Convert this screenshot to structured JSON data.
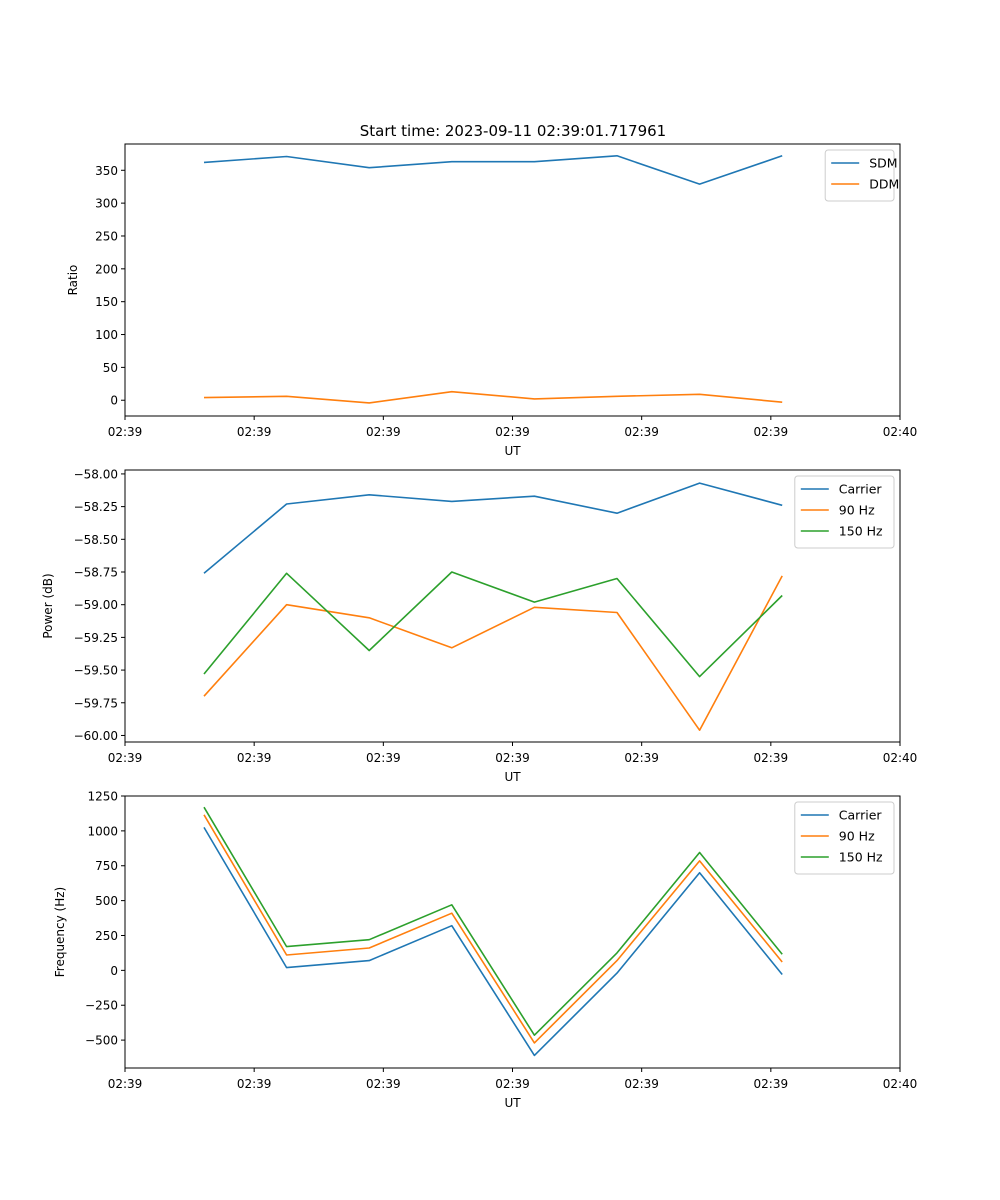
{
  "figure_title": "Start time: 2023-09-11 02:39:01.717961",
  "colors": {
    "c0": "#1f77b4",
    "c1": "#ff7f0e",
    "c2": "#2ca02c"
  },
  "chart_data": [
    {
      "type": "line",
      "title": "Start time: 2023-09-11 02:39:01.717961",
      "xlabel": "UT",
      "ylabel": "Ratio",
      "xlim": [
        -0.5,
        5.5
      ],
      "x": [
        0,
        1,
        2,
        3,
        4,
        5,
        6,
        7
      ],
      "xticks": [
        -0.5,
        0.5,
        1.5,
        2.5,
        3.5,
        4.5,
        5.5
      ],
      "xtick_labels": [
        "02:39",
        "02:39",
        "02:39",
        "02:39",
        "02:39",
        "02:39",
        "02:40"
      ],
      "ylim": [
        -24,
        390
      ],
      "yticks": [
        0,
        50,
        100,
        150,
        200,
        250,
        300,
        350
      ],
      "ytick_labels": [
        "0",
        "50",
        "100",
        "150",
        "200",
        "250",
        "300",
        "350"
      ],
      "legend_position": "upper-right",
      "series": [
        {
          "name": "SDM",
          "color": "#1f77b4",
          "values": [
            362,
            371,
            354,
            363,
            363,
            372,
            329,
            372
          ]
        },
        {
          "name": "DDM",
          "color": "#ff7f0e",
          "values": [
            4,
            6,
            -4,
            13,
            2,
            6,
            9,
            -3
          ]
        }
      ]
    },
    {
      "type": "line",
      "title": "",
      "xlabel": "UT",
      "ylabel": "Power (dB)",
      "xlim": [
        -0.5,
        5.5
      ],
      "x": [
        0,
        1,
        2,
        3,
        4,
        5,
        6,
        7
      ],
      "xticks": [
        -0.5,
        0.5,
        1.5,
        2.5,
        3.5,
        4.5,
        5.5
      ],
      "xtick_labels": [
        "02:39",
        "02:39",
        "02:39",
        "02:39",
        "02:39",
        "02:39",
        "02:40"
      ],
      "ylim": [
        -60.05,
        -57.97
      ],
      "yticks": [
        -58.0,
        -58.25,
        -58.5,
        -58.75,
        -59.0,
        -59.25,
        -59.5,
        -59.75,
        -60.0
      ],
      "ytick_labels": [
        "−58.00",
        "−58.25",
        "−58.50",
        "−58.75",
        "−59.00",
        "−59.25",
        "−59.50",
        "−59.75",
        "−60.00"
      ],
      "legend_position": "upper-right",
      "series": [
        {
          "name": "Carrier",
          "color": "#1f77b4",
          "values": [
            -58.76,
            -58.23,
            -58.16,
            -58.21,
            -58.17,
            -58.3,
            -58.07,
            -58.24
          ]
        },
        {
          "name": "90 Hz",
          "color": "#ff7f0e",
          "values": [
            -59.7,
            -59.0,
            -59.1,
            -59.33,
            -59.02,
            -59.06,
            -59.96,
            -58.78
          ]
        },
        {
          "name": "150 Hz",
          "color": "#2ca02c",
          "values": [
            -59.53,
            -58.76,
            -59.35,
            -58.75,
            -58.98,
            -58.8,
            -59.55,
            -58.93
          ]
        }
      ]
    },
    {
      "type": "line",
      "title": "",
      "xlabel": "UT",
      "ylabel": "Frequency (Hz)",
      "xlim": [
        -0.5,
        5.5
      ],
      "x": [
        0,
        1,
        2,
        3,
        4,
        5,
        6,
        7
      ],
      "xticks": [
        -0.5,
        0.5,
        1.5,
        2.5,
        3.5,
        4.5,
        5.5
      ],
      "xtick_labels": [
        "02:39",
        "02:39",
        "02:39",
        "02:39",
        "02:39",
        "02:39",
        "02:40"
      ],
      "ylim": [
        -700,
        1250
      ],
      "yticks": [
        1250,
        1000,
        750,
        500,
        250,
        0,
        -250,
        -500
      ],
      "ytick_labels": [
        "1250",
        "1000",
        "750",
        "500",
        "250",
        "0",
        "−250",
        "−500"
      ],
      "legend_position": "upper-right",
      "series": [
        {
          "name": "Carrier",
          "color": "#1f77b4",
          "values": [
            1025,
            20,
            70,
            320,
            -610,
            -20,
            700,
            -30
          ]
        },
        {
          "name": "90 Hz",
          "color": "#ff7f0e",
          "values": [
            1115,
            110,
            160,
            410,
            -520,
            70,
            785,
            60
          ]
        },
        {
          "name": "150 Hz",
          "color": "#2ca02c",
          "values": [
            1170,
            170,
            220,
            470,
            -465,
            125,
            845,
            115
          ]
        }
      ]
    }
  ]
}
